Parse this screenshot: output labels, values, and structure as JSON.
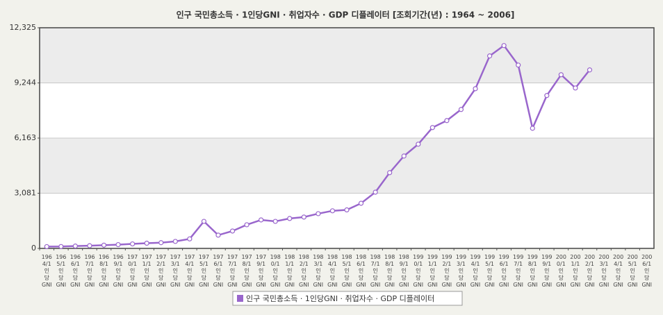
{
  "chart_data": {
    "type": "line",
    "title": "인구 국민총소득 · 1인당GNI · 취업자수 · GDP 디플레이터  [조회기간(년) : 1964 ~ 2006]",
    "categories": [
      "1964/1인당GNI",
      "1965/1인당GNI",
      "1966/1인당GNI",
      "1967/1인당GNI",
      "1968/1인당GNI",
      "1969/1인당GNI",
      "1970/1인당GNI",
      "1971/1인당GNI",
      "1972/1인당GNI",
      "1973/1인당GNI",
      "1974/1인당GNI",
      "1975/1인당GNI",
      "1976/1인당GNI",
      "1977/1인당GNI",
      "1978/1인당GNI",
      "1979/1인당GNI",
      "1980/1인당GNI",
      "1981/1인당GNI",
      "1982/1인당GNI",
      "1983/1인당GNI",
      "1984/1인당GNI",
      "1985/1인당GNI",
      "1986/1인당GNI",
      "1987/1인당GNI",
      "1988/1인당GNI",
      "1989/1인당GNI",
      "1990/1인당GNI",
      "1991/1인당GNI",
      "1992/1인당GNI",
      "1993/1인당GNI",
      "1994/1인당GNI",
      "1995/1인당GNI",
      "1996/1인당GNI",
      "1997/1인당GNI",
      "1998/1인당GNI",
      "1999/1인당GNI",
      "2000/1인당GNI",
      "2001/1인당GNI",
      "2002/1인당GNI",
      "2003/1인당GNI",
      "2004/1인당GNI",
      "2005/1인당GNI",
      "2006/1인당GNI"
    ],
    "series": [
      {
        "name": "인구 국민총소득 · 1인당GNI · 취업자수 · GDP 디플레이터",
        "color": "#9966cc",
        "values": [
          100,
          105,
          130,
          150,
          180,
          210,
          250,
          290,
          320,
          390,
          530,
          1510,
          740,
          970,
          1320,
          1590,
          1510,
          1670,
          1750,
          1940,
          2100,
          2150,
          2520,
          3140,
          4230,
          5160,
          5820,
          6750,
          7140,
          7760,
          8920,
          10750,
          11330,
          10240,
          6710,
          8540,
          9700,
          8960,
          9970,
          null,
          null,
          null,
          null
        ]
      }
    ],
    "ylim": [
      0,
      12325
    ],
    "yticks": [
      0,
      {
        "value": 3081,
        "label": "3,081"
      },
      {
        "value": 6163,
        "label": "6,163"
      },
      {
        "value": 9244,
        "label": "9,244"
      },
      {
        "value": 12325,
        "label": "12,325"
      }
    ],
    "grid": true
  }
}
